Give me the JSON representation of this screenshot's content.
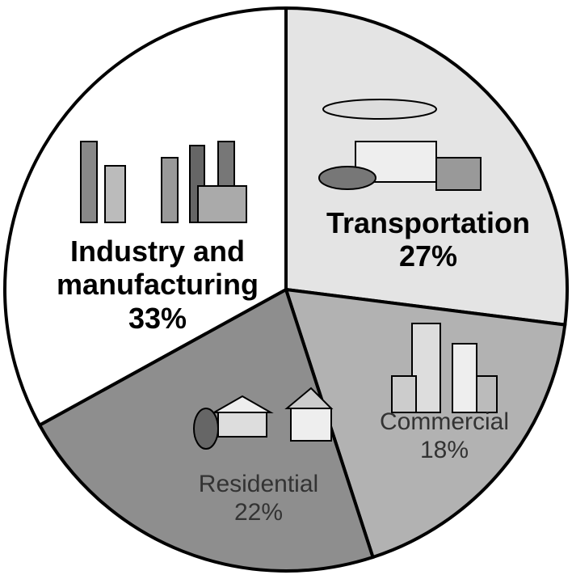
{
  "chart_data": {
    "type": "pie",
    "categories": [
      "Transportation",
      "Commercial",
      "Residential",
      "Industry and manufacturing"
    ],
    "values": [
      27,
      18,
      22,
      33
    ],
    "value_labels": [
      "27%",
      "18%",
      "22%",
      "33%"
    ],
    "colors": [
      "#e4e4e4",
      "#b2b2b2",
      "#8e8e8e",
      "#ffffff"
    ]
  }
}
